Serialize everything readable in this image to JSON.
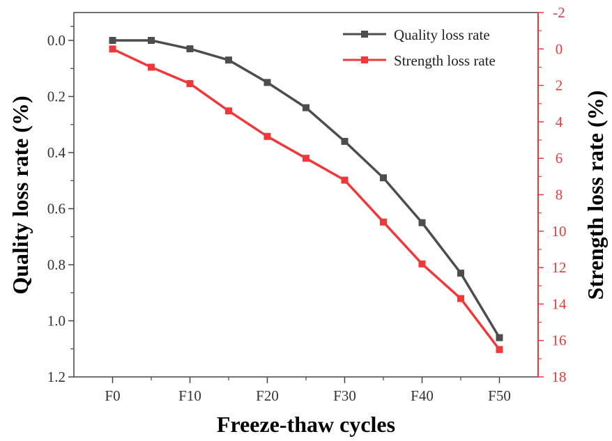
{
  "chart_data": {
    "type": "line",
    "xlabel": "Freeze-thaw cycles",
    "ylabel_left": "Quality loss rate (%)",
    "ylabel_right": "Strength loss rate (%)",
    "x": [
      0,
      5,
      10,
      15,
      20,
      25,
      30,
      35,
      40,
      45,
      50
    ],
    "x_tick_values": [
      0,
      10,
      20,
      30,
      40,
      50
    ],
    "x_tick_labels": [
      "F0",
      "F10",
      "F20",
      "F30",
      "F40",
      "F50"
    ],
    "xlim": [
      -5,
      55
    ],
    "left_axis": {
      "ylim": [
        0.0,
        1.2
      ],
      "inverted": true,
      "tick_values": [
        0.0,
        0.2,
        0.4,
        0.6,
        0.8,
        1.0,
        1.2
      ],
      "tick_labels": [
        "0.0",
        "0.2",
        "0.4",
        "0.6",
        "0.8",
        "1.0",
        "1.2"
      ],
      "extends_to": -0.1
    },
    "right_axis": {
      "ylim": [
        -2,
        18
      ],
      "inverted": true,
      "color": "#e8383b",
      "tick_values": [
        -2,
        0,
        2,
        4,
        6,
        8,
        10,
        12,
        14,
        16,
        18
      ],
      "tick_labels": [
        "-2",
        "0",
        "2",
        "4",
        "6",
        "8",
        "10",
        "12",
        "14",
        "16",
        "18"
      ]
    },
    "series": [
      {
        "name": "Quality loss rate",
        "axis": "left",
        "color": "#4d4d4d",
        "values": [
          0.0,
          0.0,
          0.03,
          0.07,
          0.15,
          0.24,
          0.36,
          0.49,
          0.65,
          0.83,
          1.06
        ]
      },
      {
        "name": "Strength loss rate",
        "axis": "right",
        "color": "#f0383b",
        "values": [
          0.0,
          1.0,
          1.9,
          3.4,
          4.8,
          6.0,
          7.2,
          9.5,
          11.8,
          13.7,
          16.5
        ]
      }
    ],
    "legend": "top-right",
    "grid": false
  }
}
